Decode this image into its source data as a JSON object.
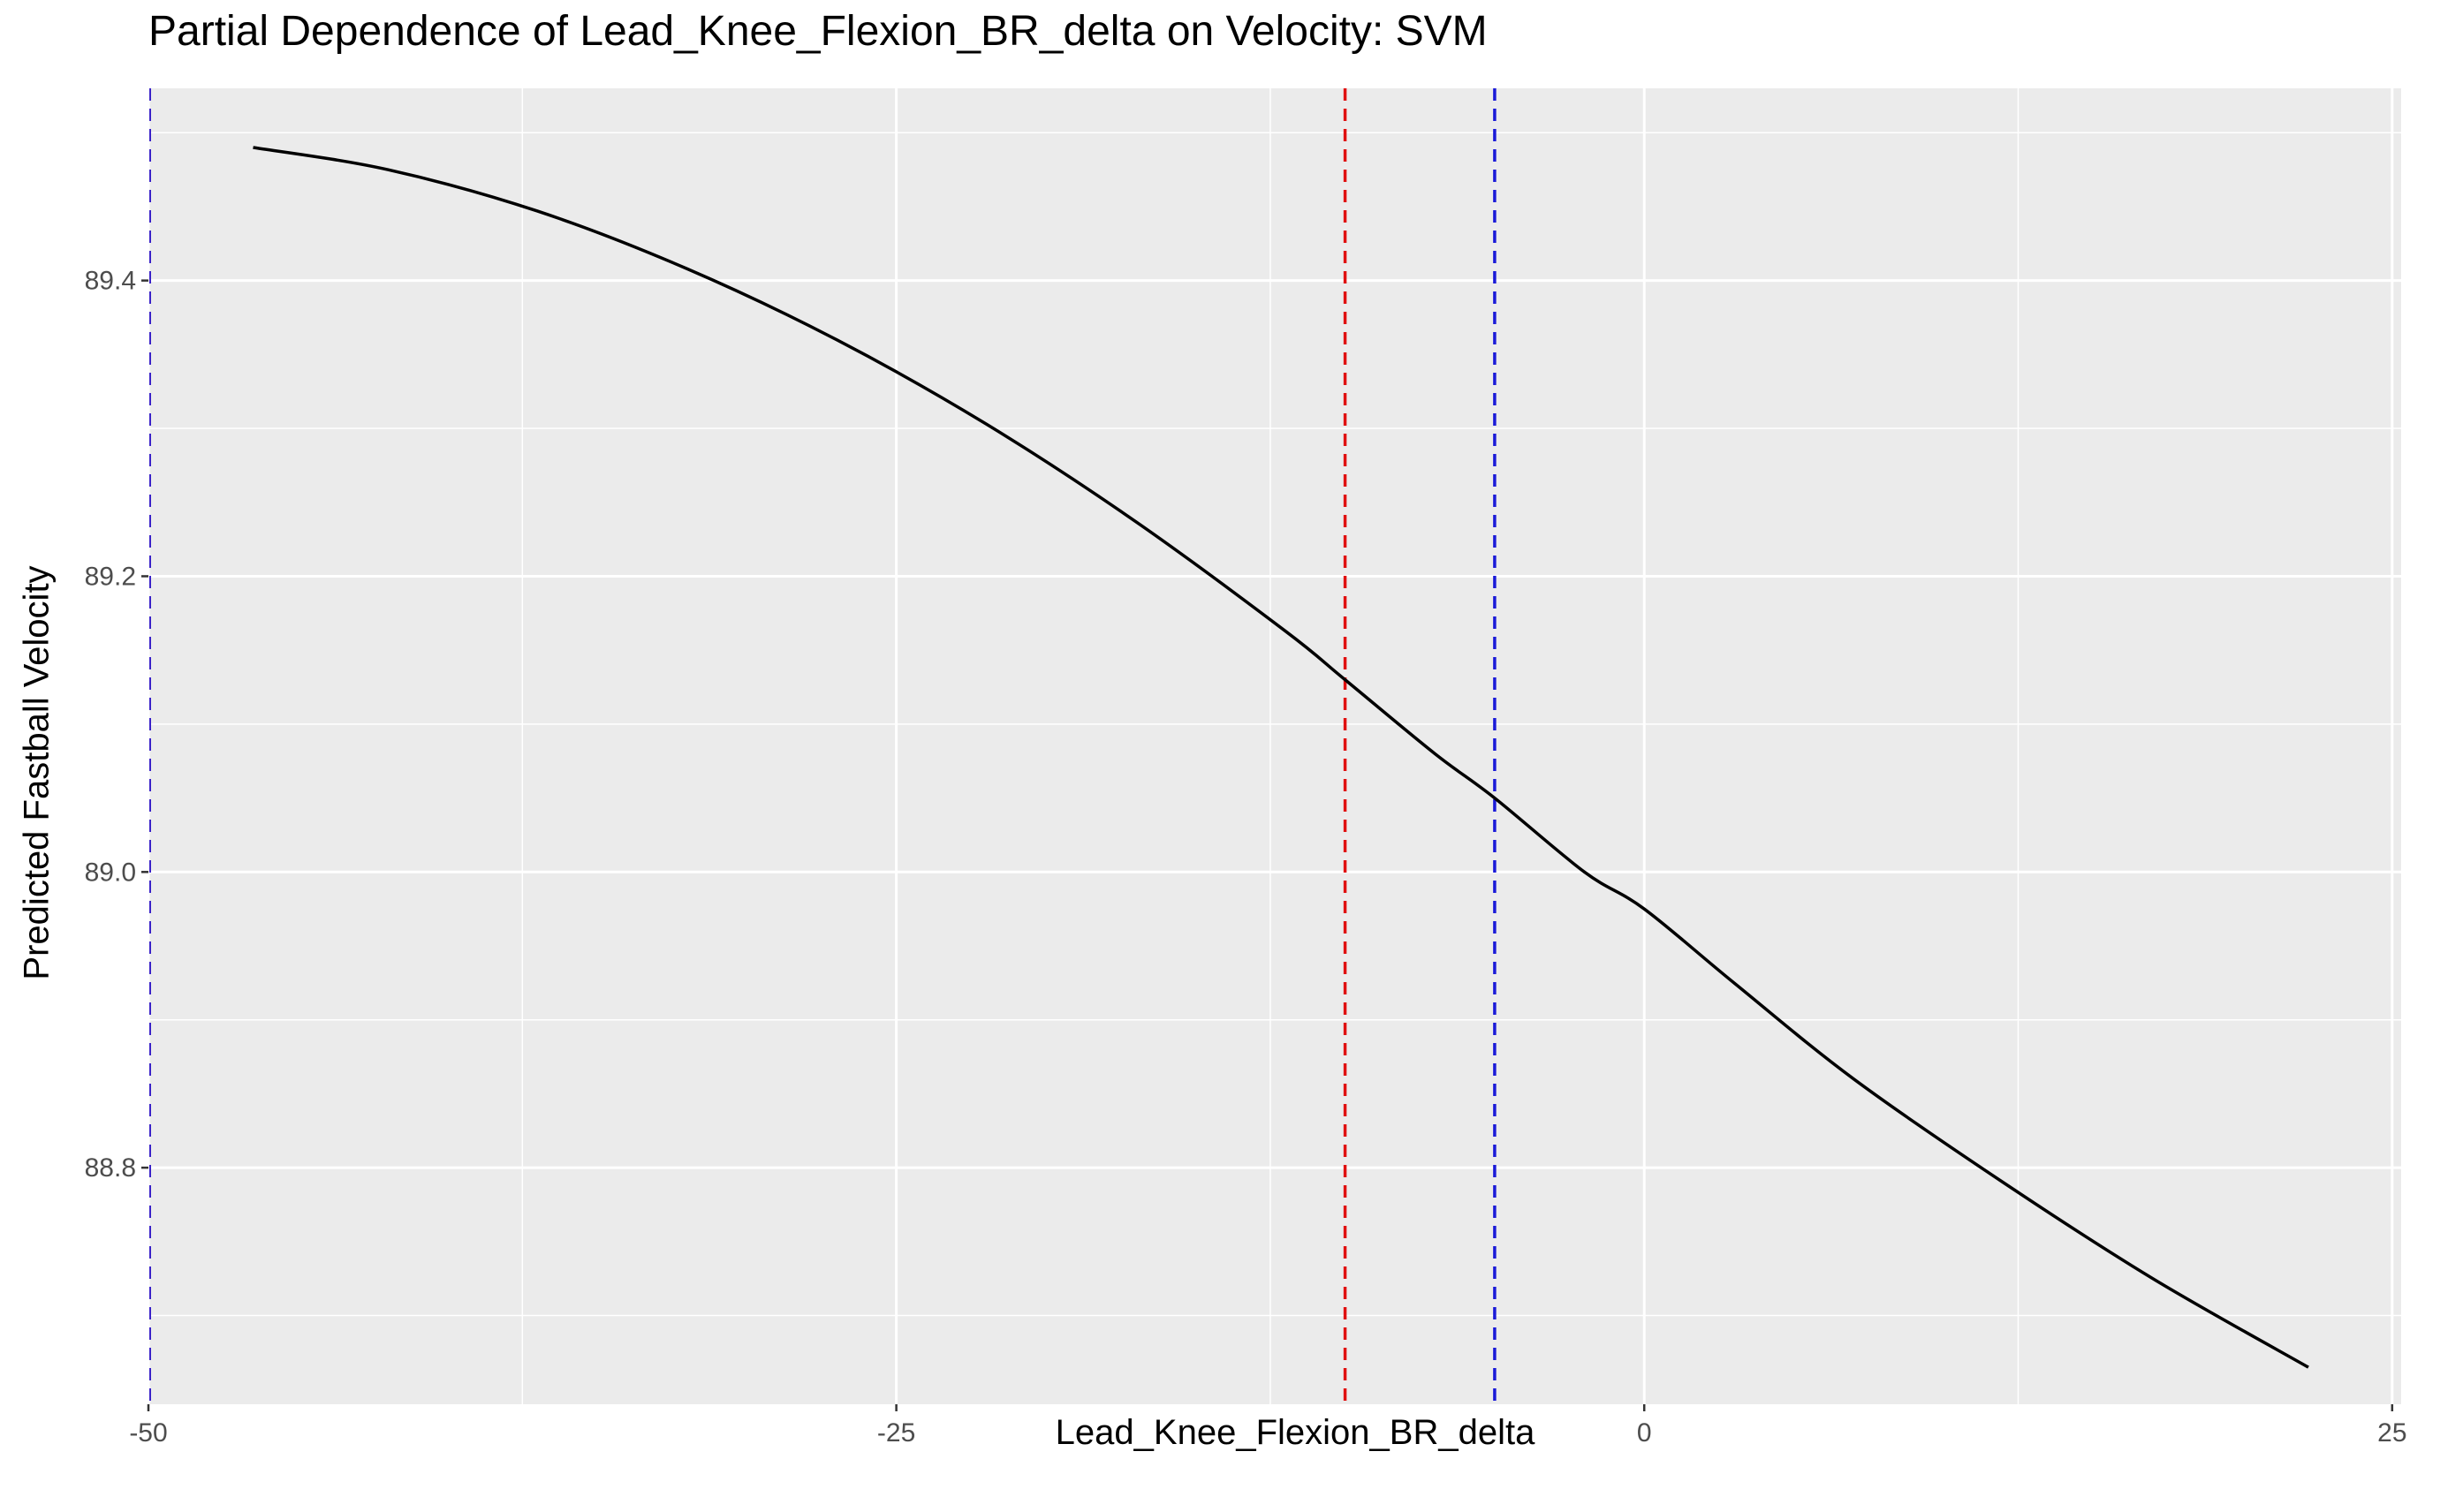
{
  "chart_data": {
    "type": "line",
    "title": "Partial Dependence of Lead_Knee_Flexion_BR_delta on Velocity: SVM",
    "xlabel": "Lead_Knee_Flexion_BR_delta",
    "ylabel": "Predicted Fastball Velocity",
    "xlim": [
      -50,
      25
    ],
    "ylim": [
      88.64,
      89.53
    ],
    "x_ticks": [
      -50,
      -25,
      0,
      25
    ],
    "x_tick_labels": [
      "-50",
      "-25",
      "0",
      "25"
    ],
    "y_ticks": [
      88.8,
      89.0,
      89.2,
      89.4
    ],
    "y_tick_labels": [
      "88.8",
      "89.0",
      "89.2",
      "89.4"
    ],
    "grid": true,
    "series": [
      {
        "color": "#000000",
        "x": [
          -46.5,
          -42,
          -37,
          -32,
          -27,
          -22,
          -17,
          -12,
          -10,
          -7,
          -5,
          -2,
          0,
          3,
          7,
          12,
          17,
          22.2
        ],
        "y": [
          89.49,
          89.475,
          89.447,
          89.408,
          89.36,
          89.303,
          89.237,
          89.163,
          89.13,
          89.08,
          89.05,
          89.0,
          88.975,
          88.925,
          88.86,
          88.79,
          88.725,
          88.665
        ]
      }
    ],
    "vlines": [
      {
        "x": -50,
        "color": "#3a22c8",
        "style": "dashed"
      },
      {
        "x": -10,
        "color": "#e01010",
        "style": "dashed"
      },
      {
        "x": -5,
        "color": "#1a1ad8",
        "style": "dashed"
      }
    ]
  }
}
